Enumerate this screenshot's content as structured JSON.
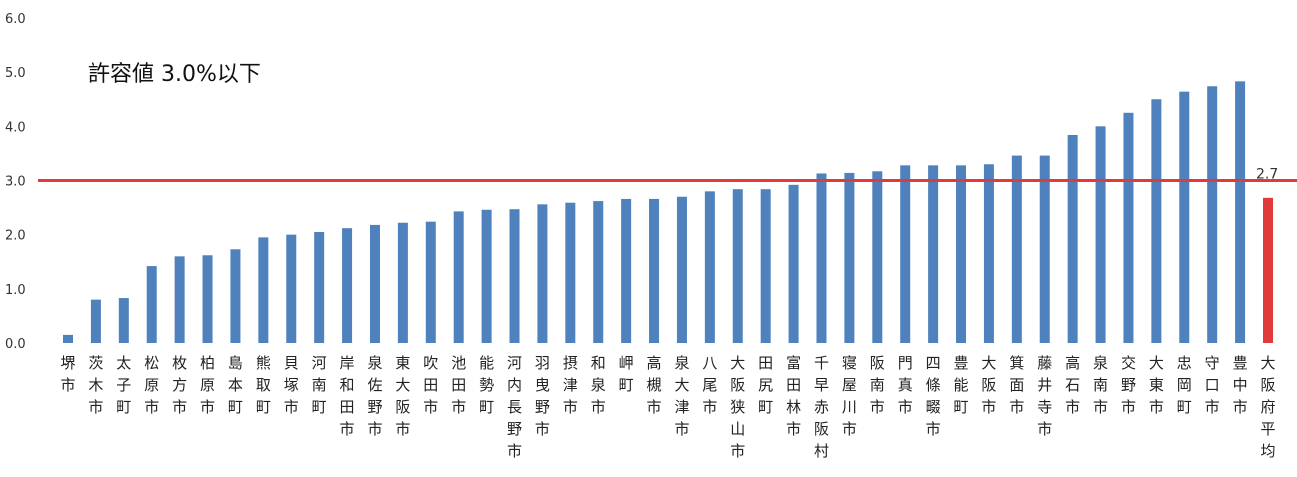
{
  "chart_data": {
    "type": "bar",
    "annotation": "許容値 3.0%以下",
    "yticks": [
      "0.0",
      "1.0",
      "2.0",
      "3.0",
      "4.0",
      "5.0",
      "6.0"
    ],
    "ylim": [
      0,
      6
    ],
    "threshold": 3.0,
    "threshold_color": "#e03a3a",
    "bar_color": "#4f81bd",
    "highlight_color": "#e03a3a",
    "average_label": "2.7",
    "categories": [
      "堺市",
      "茨木市",
      "太子町",
      "松原市",
      "枚方市",
      "柏原市",
      "島本町",
      "熊取町",
      "貝塚市",
      "河南町",
      "岸和田市",
      "泉佐野市",
      "東大阪市",
      "吹田市",
      "池田市",
      "能勢町",
      "河内長野市",
      "羽曳野市",
      "摂津市",
      "和泉市",
      "岬町",
      "高槻市",
      "泉大津市",
      "八尾市",
      "大阪狭山市",
      "田尻町",
      "富田林市",
      "千早赤阪村",
      "寝屋川市",
      "阪南市",
      "門真市",
      "四條畷市",
      "豊能町",
      "大阪市",
      "箕面市",
      "藤井寺市",
      "高石市",
      "泉南市",
      "交野市",
      "大東市",
      "忠岡町",
      "守口市",
      "豊中市",
      "大阪府平均"
    ],
    "values": [
      0.15,
      0.8,
      0.83,
      1.42,
      1.6,
      1.62,
      1.73,
      1.95,
      2.0,
      2.05,
      2.12,
      2.18,
      2.22,
      2.24,
      2.43,
      2.46,
      2.47,
      2.56,
      2.59,
      2.62,
      2.66,
      2.66,
      2.7,
      2.8,
      2.84,
      2.84,
      2.92,
      3.13,
      3.14,
      3.17,
      3.28,
      3.28,
      3.28,
      3.3,
      3.46,
      3.46,
      3.84,
      4.0,
      4.25,
      4.5,
      4.64,
      4.74,
      4.83,
      2.68
    ]
  }
}
